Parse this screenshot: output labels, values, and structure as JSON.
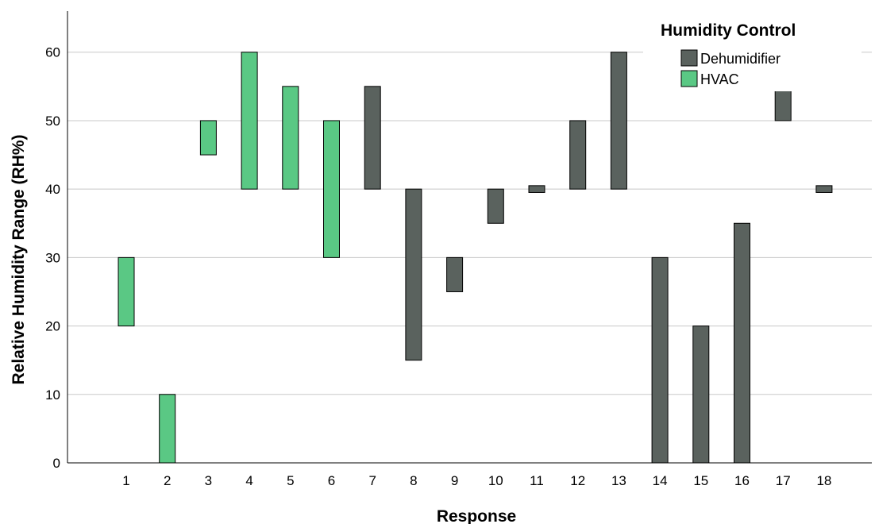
{
  "chart_data": {
    "type": "bar",
    "subtype": "floating-range",
    "xlabel": "Response",
    "ylabel": "Relative Humidity Range (RH%)",
    "categories": [
      "1",
      "2",
      "3",
      "4",
      "5",
      "6",
      "7",
      "8",
      "9",
      "10",
      "11",
      "12",
      "13",
      "14",
      "15",
      "16",
      "17",
      "18"
    ],
    "ylim": [
      0,
      66
    ],
    "yticks": [
      0,
      10,
      20,
      30,
      40,
      50,
      60
    ],
    "grid": "horizontal",
    "legend": {
      "title": "Humidity Control",
      "position": "top-right",
      "entries": [
        {
          "label": "Dehumidifier",
          "color": "#5a625e"
        },
        {
          "label": "HVAC",
          "color": "#5ac884"
        }
      ]
    },
    "bars": [
      {
        "x": "1",
        "low": 20,
        "high": 30,
        "group": "HVAC"
      },
      {
        "x": "2",
        "low": 0,
        "high": 10,
        "group": "HVAC"
      },
      {
        "x": "3",
        "low": 45,
        "high": 50,
        "group": "HVAC"
      },
      {
        "x": "4",
        "low": 40,
        "high": 60,
        "group": "HVAC"
      },
      {
        "x": "5",
        "low": 40,
        "high": 55,
        "group": "HVAC"
      },
      {
        "x": "6",
        "low": 30,
        "high": 50,
        "group": "HVAC"
      },
      {
        "x": "7",
        "low": 40,
        "high": 55,
        "group": "Dehumidifier"
      },
      {
        "x": "8",
        "low": 15,
        "high": 40,
        "group": "Dehumidifier"
      },
      {
        "x": "9",
        "low": 25,
        "high": 30,
        "group": "Dehumidifier"
      },
      {
        "x": "10",
        "low": 35,
        "high": 40,
        "group": "Dehumidifier"
      },
      {
        "x": "11",
        "low": 39.5,
        "high": 40.5,
        "group": "Dehumidifier"
      },
      {
        "x": "12",
        "low": 40,
        "high": 50,
        "group": "Dehumidifier"
      },
      {
        "x": "13",
        "low": 40,
        "high": 60,
        "group": "Dehumidifier"
      },
      {
        "x": "14",
        "low": 0,
        "high": 30,
        "group": "Dehumidifier"
      },
      {
        "x": "15",
        "low": 0,
        "high": 20,
        "group": "Dehumidifier"
      },
      {
        "x": "16",
        "low": 0,
        "high": 35,
        "group": "Dehumidifier"
      },
      {
        "x": "17",
        "low": 50,
        "high": 55,
        "group": "Dehumidifier"
      },
      {
        "x": "18",
        "low": 39.5,
        "high": 40.5,
        "group": "Dehumidifier"
      }
    ]
  }
}
